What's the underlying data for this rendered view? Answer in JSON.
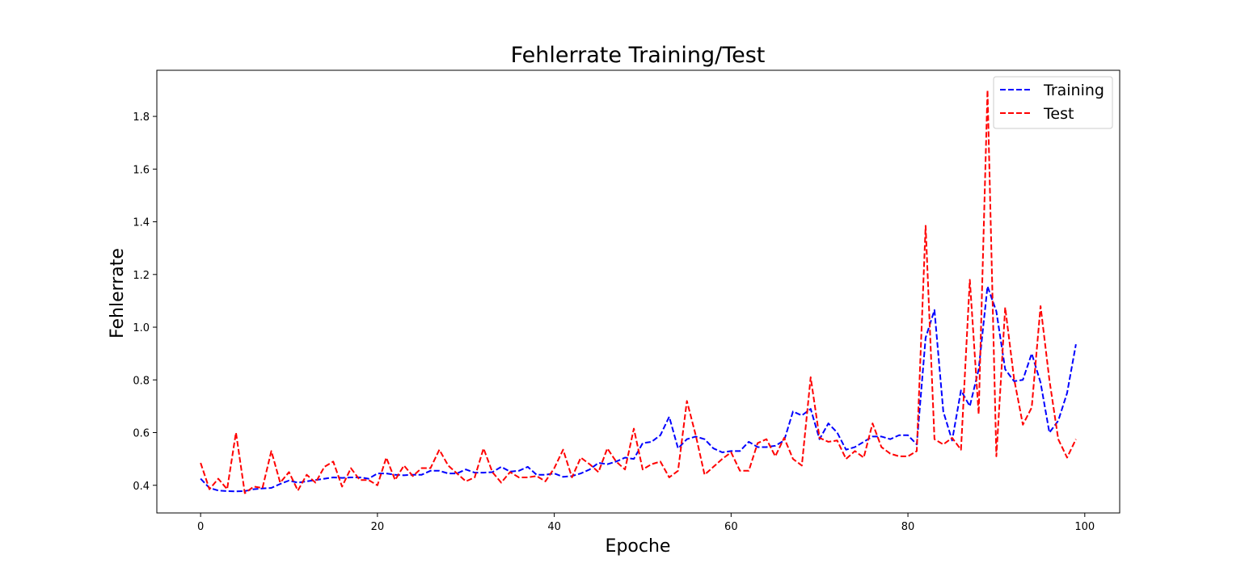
{
  "chart_data": {
    "type": "line",
    "title": "Fehlerrate Training/Test",
    "xlabel": "Epoche",
    "ylabel": "Fehlerrate",
    "xlim": [
      -4.95,
      103.95
    ],
    "ylim": [
      0.295,
      1.975
    ],
    "xticks": [
      0,
      20,
      40,
      60,
      80,
      100
    ],
    "yticks": [
      0.4,
      0.6,
      0.8,
      1.0,
      1.2,
      1.4,
      1.6,
      1.8
    ],
    "grid": false,
    "legend_position": "top-right",
    "series": [
      {
        "name": "Training",
        "color": "#0000ff",
        "linestyle": "dashed",
        "values": [
          0.425,
          0.39,
          0.38,
          0.378,
          0.377,
          0.378,
          0.385,
          0.388,
          0.39,
          0.405,
          0.418,
          0.41,
          0.415,
          0.42,
          0.425,
          0.43,
          0.428,
          0.43,
          0.43,
          0.425,
          0.445,
          0.445,
          0.44,
          0.438,
          0.44,
          0.44,
          0.455,
          0.455,
          0.445,
          0.445,
          0.46,
          0.448,
          0.448,
          0.45,
          0.47,
          0.452,
          0.455,
          0.47,
          0.44,
          0.44,
          0.445,
          0.432,
          0.435,
          0.445,
          0.46,
          0.485,
          0.48,
          0.49,
          0.505,
          0.5,
          0.56,
          0.565,
          0.59,
          0.66,
          0.54,
          0.575,
          0.585,
          0.575,
          0.54,
          0.525,
          0.53,
          0.53,
          0.565,
          0.545,
          0.545,
          0.55,
          0.57,
          0.68,
          0.665,
          0.69,
          0.575,
          0.635,
          0.6,
          0.535,
          0.545,
          0.565,
          0.585,
          0.585,
          0.575,
          0.59,
          0.59,
          0.555,
          0.96,
          1.065,
          0.68,
          0.57,
          0.76,
          0.7,
          0.84,
          1.155,
          1.06,
          0.84,
          0.795,
          0.8,
          0.9,
          0.79,
          0.6,
          0.645,
          0.75,
          0.935
        ]
      },
      {
        "name": "Test",
        "color": "#ff0000",
        "linestyle": "dashed",
        "values": [
          0.485,
          0.385,
          0.425,
          0.385,
          0.6,
          0.37,
          0.395,
          0.39,
          0.53,
          0.41,
          0.45,
          0.38,
          0.44,
          0.41,
          0.47,
          0.49,
          0.395,
          0.465,
          0.42,
          0.42,
          0.4,
          0.505,
          0.42,
          0.475,
          0.435,
          0.465,
          0.465,
          0.535,
          0.475,
          0.445,
          0.415,
          0.43,
          0.54,
          0.45,
          0.41,
          0.45,
          0.43,
          0.43,
          0.435,
          0.415,
          0.465,
          0.535,
          0.43,
          0.505,
          0.48,
          0.45,
          0.54,
          0.49,
          0.46,
          0.615,
          0.46,
          0.48,
          0.49,
          0.43,
          0.455,
          0.72,
          0.59,
          0.44,
          0.47,
          0.5,
          0.525,
          0.455,
          0.455,
          0.56,
          0.575,
          0.51,
          0.58,
          0.5,
          0.475,
          0.81,
          0.58,
          0.565,
          0.57,
          0.5,
          0.53,
          0.505,
          0.635,
          0.545,
          0.52,
          0.51,
          0.51,
          0.53,
          1.385,
          0.575,
          0.555,
          0.58,
          0.535,
          1.18,
          0.67,
          1.9,
          0.51,
          1.075,
          0.805,
          0.63,
          0.695,
          1.08,
          0.8,
          0.575,
          0.505,
          0.575
        ]
      }
    ]
  }
}
